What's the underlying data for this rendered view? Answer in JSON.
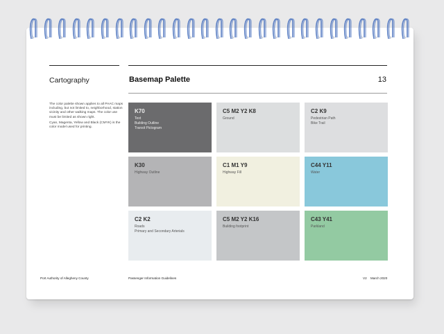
{
  "binding": {
    "ring_count": 27,
    "ring_color": "#5b7fc3"
  },
  "sidebar": {
    "section_title": "Cartography",
    "description": [
      "The color palette shown applies to all PAAC maps including, but not limited to, neighborhood, station vicinity and other walking maps. The color use must be limited as shown right.",
      "Cyan, Magenta, Yellow and Black (CMYK) is the color model used for printing."
    ]
  },
  "header": {
    "title": "Basemap Palette",
    "page_number": "13"
  },
  "swatches": [
    {
      "code": "K70",
      "lines": [
        "Text",
        "Building Outline",
        "Transit Pictogram"
      ],
      "color": "#6b6b6d",
      "dark": true
    },
    {
      "code": "C5 M2 Y2 K8",
      "lines": [
        "Ground"
      ],
      "color": "#dcdedf",
      "dark": false
    },
    {
      "code": "C2 K9",
      "lines": [
        "Pedestrian Path",
        "Bike Trail"
      ],
      "color": "#dddee0",
      "dark": false
    },
    {
      "code": "K30",
      "lines": [
        "Highway Outline"
      ],
      "color": "#b4b4b6",
      "dark": false
    },
    {
      "code": "C1 M1 Y9",
      "lines": [
        "Highway Fill"
      ],
      "color": "#f1f0e0",
      "dark": false
    },
    {
      "code": "C44 Y11",
      "lines": [
        "Water"
      ],
      "color": "#89c8db",
      "dark": false
    },
    {
      "code": "C2 K2",
      "lines": [
        "Roads",
        "Primary and Secondary Arterials"
      ],
      "color": "#e8ecef",
      "dark": false
    },
    {
      "code": "C5 M2 Y2 K16",
      "lines": [
        "Building footprint"
      ],
      "color": "#c4c6c8",
      "dark": false
    },
    {
      "code": "C43 Y41",
      "lines": [
        "Parkland"
      ],
      "color": "#93caa2",
      "dark": false
    }
  ],
  "footer": {
    "organization": "Port Authority of Allegheny County",
    "document": "Passenger Information Guidelines",
    "version": "V2",
    "date": "March 2020"
  }
}
